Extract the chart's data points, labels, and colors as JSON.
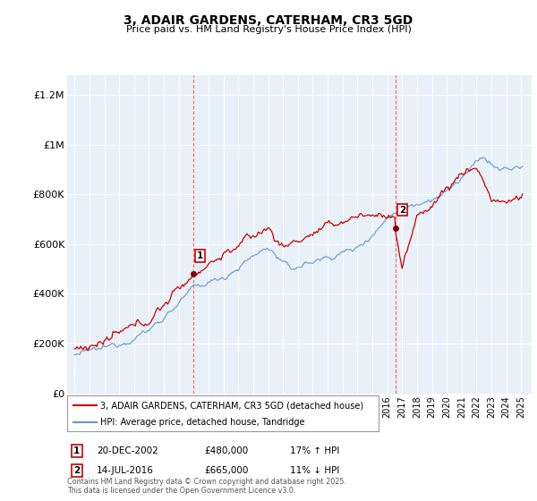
{
  "title": "3, ADAIR GARDENS, CATERHAM, CR3 5GD",
  "subtitle": "Price paid vs. HM Land Registry's House Price Index (HPI)",
  "ylabel_ticks": [
    "£0",
    "£200K",
    "£400K",
    "£600K",
    "£800K",
    "£1M",
    "£1.2M"
  ],
  "ylim": [
    0,
    1280000
  ],
  "xlim_start": 1994.5,
  "xlim_end": 2025.7,
  "transaction1_x": 2002.97,
  "transaction1_y": 480000,
  "transaction2_x": 2016.54,
  "transaction2_y": 665000,
  "line1_label": "3, ADAIR GARDENS, CATERHAM, CR3 5GD (detached house)",
  "line2_label": "HPI: Average price, detached house, Tandridge",
  "footer": "Contains HM Land Registry data © Crown copyright and database right 2025.\nThis data is licensed under the Open Government Licence v3.0.",
  "color_price": "#cc0000",
  "color_hpi": "#6699cc",
  "background_color": "#e8f0f8"
}
